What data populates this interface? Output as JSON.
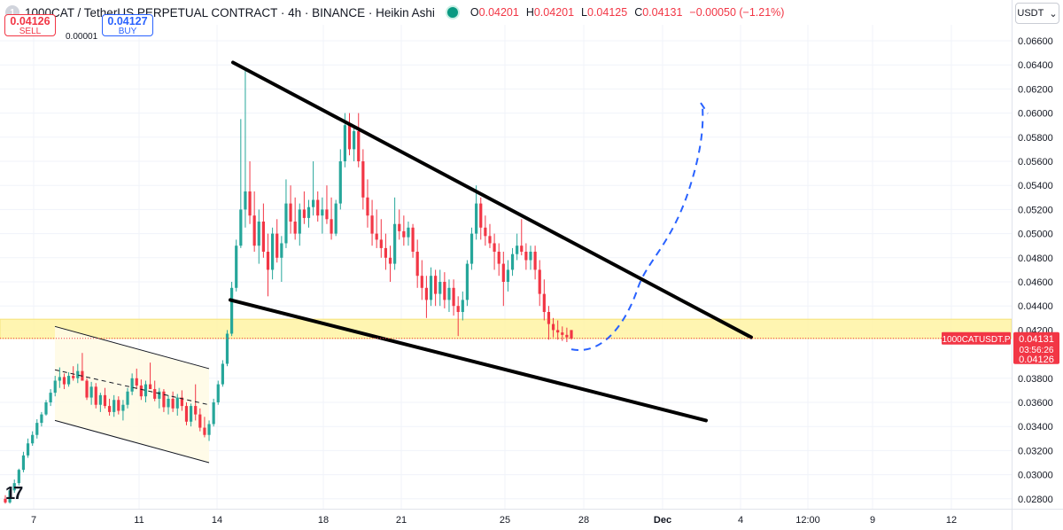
{
  "header": {
    "symbol_badge": "1",
    "title": "1000CAT / TetherUS PERPETUAL CONTRACT · 4h · BINANCE · Heikin Ashi",
    "ohlc": [
      {
        "key": "O",
        "value": "0.04201"
      },
      {
        "key": "H",
        "value": "0.04201"
      },
      {
        "key": "L",
        "value": "0.04125"
      },
      {
        "key": "C",
        "value": "0.04131"
      },
      {
        "key": "",
        "value": "−0.00050 (−1.21%)"
      }
    ]
  },
  "trade": {
    "sell_price": "0.04126",
    "sell_label": "SELL",
    "spread": "0.00001",
    "buy_price": "0.04127",
    "buy_label": "BUY"
  },
  "currency_selector": {
    "label": "USDT",
    "icon": "chevron-down-icon"
  },
  "logo": "17",
  "colors": {
    "up": "#26a69a",
    "down": "#f23645",
    "trend_lines": "#000000",
    "zone": "#fff3a3",
    "projection": "#2962ff",
    "price_tag": "#f23645"
  },
  "chart_data": {
    "type": "candlestick",
    "style": "Heikin Ashi",
    "interval": "4h",
    "y_axis": {
      "ticks": [
        "0.06600",
        "0.06400",
        "0.06200",
        "0.06000",
        "0.05800",
        "0.05600",
        "0.05400",
        "0.05200",
        "0.05000",
        "0.04800",
        "0.04600",
        "0.04400",
        "0.04200",
        "0.03800",
        "0.03600",
        "0.03400",
        "0.03200",
        "0.03000",
        "0.02800"
      ],
      "range": [
        0.0272,
        0.0672
      ]
    },
    "x_axis": {
      "ticks": [
        "7",
        "11",
        "14",
        "18",
        "21",
        "25",
        "28",
        "Dec",
        "4",
        "12:00",
        "9",
        "12"
      ]
    },
    "price_label": {
      "symbol": "1000CATUSDT.P",
      "last": "0.04131",
      "countdown": "03:56:26",
      "bid": "0.04126"
    },
    "support_zone": [
      0.0413,
      0.0429
    ],
    "wedge_upper": {
      "from": [
        "Nov 14",
        0.0642
      ],
      "to": [
        "Dec 4",
        0.0414
      ]
    },
    "wedge_lower": {
      "from": [
        "Nov 14",
        0.0445
      ],
      "to": [
        "Dec 2",
        0.0345
      ]
    },
    "channel_upper": {
      "from": [
        "Nov 8",
        0.0423
      ],
      "to": [
        "Nov 13",
        0.0388
      ]
    },
    "channel_lower": {
      "from": [
        "Nov 8",
        0.0345
      ],
      "to": [
        "Nov 13",
        0.031
      ]
    },
    "projection": [
      [
        "Nov 27",
        0.0404
      ],
      [
        "Nov 30",
        0.044
      ],
      [
        "Dec 2",
        0.052
      ],
      [
        "Dec 3",
        0.0607
      ]
    ],
    "candles": [
      [
        0.028,
        0.0283,
        0.0276,
        0.0277
      ],
      [
        0.0277,
        0.0288,
        0.0276,
        0.0287
      ],
      [
        0.0287,
        0.0296,
        0.0285,
        0.0293
      ],
      [
        0.0293,
        0.0305,
        0.0291,
        0.0304
      ],
      [
        0.0304,
        0.0319,
        0.0302,
        0.0316
      ],
      [
        0.0316,
        0.033,
        0.0314,
        0.0326
      ],
      [
        0.0326,
        0.0336,
        0.0324,
        0.0333
      ],
      [
        0.0333,
        0.0346,
        0.033,
        0.0343
      ],
      [
        0.0343,
        0.0352,
        0.034,
        0.035
      ],
      [
        0.035,
        0.0362,
        0.0349,
        0.036
      ],
      [
        0.036,
        0.0371,
        0.0357,
        0.0368
      ],
      [
        0.0368,
        0.0382,
        0.0365,
        0.0378
      ],
      [
        0.0378,
        0.0389,
        0.0372,
        0.0381
      ],
      [
        0.0381,
        0.0384,
        0.0371,
        0.0375
      ],
      [
        0.0375,
        0.0385,
        0.0373,
        0.0382
      ],
      [
        0.0382,
        0.039,
        0.0378,
        0.038
      ],
      [
        0.038,
        0.0392,
        0.0376,
        0.0386
      ],
      [
        0.0386,
        0.0401,
        0.038,
        0.0378
      ],
      [
        0.0378,
        0.038,
        0.0362,
        0.0364
      ],
      [
        0.0364,
        0.0377,
        0.0358,
        0.0373
      ],
      [
        0.0373,
        0.0376,
        0.0355,
        0.0358
      ],
      [
        0.0358,
        0.0368,
        0.0352,
        0.0366
      ],
      [
        0.0366,
        0.0372,
        0.0355,
        0.0357
      ],
      [
        0.0357,
        0.0363,
        0.0349,
        0.0352
      ],
      [
        0.0352,
        0.0366,
        0.0348,
        0.0362
      ],
      [
        0.0362,
        0.0365,
        0.035,
        0.0353
      ],
      [
        0.0353,
        0.0362,
        0.0345,
        0.0358
      ],
      [
        0.0358,
        0.0372,
        0.0355,
        0.0369
      ],
      [
        0.0369,
        0.0384,
        0.0366,
        0.038
      ],
      [
        0.038,
        0.0388,
        0.0371,
        0.0374
      ],
      [
        0.0374,
        0.0379,
        0.0362,
        0.0365
      ],
      [
        0.0365,
        0.0378,
        0.036,
        0.0375
      ],
      [
        0.0375,
        0.0393,
        0.0372,
        0.0371
      ],
      [
        0.0371,
        0.0378,
        0.0361,
        0.0363
      ],
      [
        0.0363,
        0.0372,
        0.0355,
        0.0369
      ],
      [
        0.0369,
        0.0371,
        0.0352,
        0.0356
      ],
      [
        0.0356,
        0.0366,
        0.035,
        0.0363
      ],
      [
        0.0363,
        0.0369,
        0.0352,
        0.0355
      ],
      [
        0.0355,
        0.0367,
        0.0349,
        0.0364
      ],
      [
        0.0364,
        0.037,
        0.0353,
        0.0357
      ],
      [
        0.0357,
        0.036,
        0.0341,
        0.0344
      ],
      [
        0.0344,
        0.0359,
        0.034,
        0.0357
      ],
      [
        0.0357,
        0.0375,
        0.0345,
        0.035
      ],
      [
        0.035,
        0.0355,
        0.0336,
        0.0339
      ],
      [
        0.0339,
        0.0348,
        0.0331,
        0.0333
      ],
      [
        0.0333,
        0.0345,
        0.0328,
        0.0342
      ],
      [
        0.0342,
        0.0363,
        0.034,
        0.036
      ],
      [
        0.036,
        0.0378,
        0.0358,
        0.0375
      ],
      [
        0.0375,
        0.0395,
        0.0373,
        0.0392
      ],
      [
        0.0392,
        0.042,
        0.039,
        0.0417
      ],
      [
        0.0417,
        0.046,
        0.0415,
        0.0455
      ],
      [
        0.0455,
        0.0495,
        0.0452,
        0.049
      ],
      [
        0.049,
        0.0595,
        0.0488,
        0.052
      ],
      [
        0.052,
        0.0635,
        0.0505,
        0.0535
      ],
      [
        0.0535,
        0.056,
        0.0508,
        0.0515
      ],
      [
        0.0515,
        0.0535,
        0.0485,
        0.049
      ],
      [
        0.049,
        0.052,
        0.0475,
        0.051
      ],
      [
        0.051,
        0.0525,
        0.048,
        0.0485
      ],
      [
        0.0485,
        0.05,
        0.0448,
        0.047
      ],
      [
        0.047,
        0.0505,
        0.0462,
        0.05
      ],
      [
        0.05,
        0.0512,
        0.0476,
        0.048
      ],
      [
        0.048,
        0.0498,
        0.046,
        0.0492
      ],
      [
        0.0492,
        0.0545,
        0.0488,
        0.0525
      ],
      [
        0.0525,
        0.054,
        0.05,
        0.051
      ],
      [
        0.051,
        0.053,
        0.0495,
        0.05
      ],
      [
        0.05,
        0.0525,
        0.049,
        0.052
      ],
      [
        0.052,
        0.0535,
        0.0508,
        0.0513
      ],
      [
        0.0513,
        0.0528,
        0.0505,
        0.0522
      ],
      [
        0.0522,
        0.056,
        0.0515,
        0.0528
      ],
      [
        0.0528,
        0.0535,
        0.051,
        0.0515
      ],
      [
        0.0515,
        0.053,
        0.05,
        0.052
      ],
      [
        0.052,
        0.054,
        0.0508,
        0.0512
      ],
      [
        0.0512,
        0.053,
        0.0495,
        0.05
      ],
      [
        0.05,
        0.0528,
        0.0498,
        0.0525
      ],
      [
        0.0525,
        0.057,
        0.052,
        0.056
      ],
      [
        0.056,
        0.06,
        0.0555,
        0.059
      ],
      [
        0.059,
        0.06,
        0.0565,
        0.057
      ],
      [
        0.057,
        0.059,
        0.056,
        0.0585
      ],
      [
        0.0585,
        0.06,
        0.0555,
        0.056
      ],
      [
        0.056,
        0.057,
        0.052,
        0.053
      ],
      [
        0.053,
        0.0545,
        0.0505,
        0.0515
      ],
      [
        0.0515,
        0.0528,
        0.049,
        0.05
      ],
      [
        0.05,
        0.052,
        0.0488,
        0.0495
      ],
      [
        0.0495,
        0.0512,
        0.048,
        0.0488
      ],
      [
        0.0488,
        0.05,
        0.047,
        0.048
      ],
      [
        0.048,
        0.049,
        0.046,
        0.0475
      ],
      [
        0.0475,
        0.053,
        0.047,
        0.0508
      ],
      [
        0.0508,
        0.052,
        0.0495,
        0.0502
      ],
      [
        0.0502,
        0.0515,
        0.049,
        0.0497
      ],
      [
        0.0497,
        0.051,
        0.049,
        0.0505
      ],
      [
        0.0505,
        0.0508,
        0.048,
        0.0485
      ],
      [
        0.0485,
        0.0495,
        0.0455,
        0.0465
      ],
      [
        0.0465,
        0.0478,
        0.0445,
        0.0455
      ],
      [
        0.0455,
        0.0465,
        0.043,
        0.0445
      ],
      [
        0.0445,
        0.0472,
        0.044,
        0.0465
      ],
      [
        0.0465,
        0.047,
        0.044,
        0.045
      ],
      [
        0.045,
        0.047,
        0.044,
        0.046
      ],
      [
        0.046,
        0.0468,
        0.0438,
        0.0445
      ],
      [
        0.0445,
        0.0462,
        0.0435,
        0.0455
      ],
      [
        0.0455,
        0.0462,
        0.0432,
        0.044
      ],
      [
        0.044,
        0.0448,
        0.0415,
        0.0435
      ],
      [
        0.0435,
        0.0452,
        0.0428,
        0.0445
      ],
      [
        0.0445,
        0.0478,
        0.044,
        0.0475
      ],
      [
        0.0475,
        0.0505,
        0.047,
        0.05
      ],
      [
        0.05,
        0.054,
        0.0495,
        0.0525
      ],
      [
        0.0525,
        0.053,
        0.0495,
        0.0505
      ],
      [
        0.0505,
        0.0515,
        0.049,
        0.0498
      ],
      [
        0.0498,
        0.0508,
        0.0488,
        0.0492
      ],
      [
        0.0492,
        0.05,
        0.047,
        0.0485
      ],
      [
        0.0485,
        0.0492,
        0.0465,
        0.0475
      ],
      [
        0.0475,
        0.0485,
        0.044,
        0.046
      ],
      [
        0.046,
        0.0478,
        0.0452,
        0.047
      ],
      [
        0.047,
        0.0488,
        0.0465,
        0.0483
      ],
      [
        0.0483,
        0.05,
        0.0478,
        0.049
      ],
      [
        0.049,
        0.0512,
        0.0482,
        0.0485
      ],
      [
        0.0485,
        0.0492,
        0.047,
        0.0478
      ],
      [
        0.0478,
        0.049,
        0.047,
        0.0485
      ],
      [
        0.0485,
        0.049,
        0.0462,
        0.047
      ],
      [
        0.047,
        0.0478,
        0.044,
        0.045
      ],
      [
        0.045,
        0.0462,
        0.0428,
        0.0435
      ],
      [
        0.0435,
        0.044,
        0.0412,
        0.0425
      ],
      [
        0.0425,
        0.043,
        0.0414,
        0.042
      ],
      [
        0.042,
        0.0428,
        0.0412,
        0.0418
      ],
      [
        0.0418,
        0.0423,
        0.0411,
        0.0416
      ],
      [
        0.0416,
        0.0422,
        0.041,
        0.0414
      ],
      [
        0.042,
        0.042,
        0.0412,
        0.0413
      ]
    ]
  }
}
